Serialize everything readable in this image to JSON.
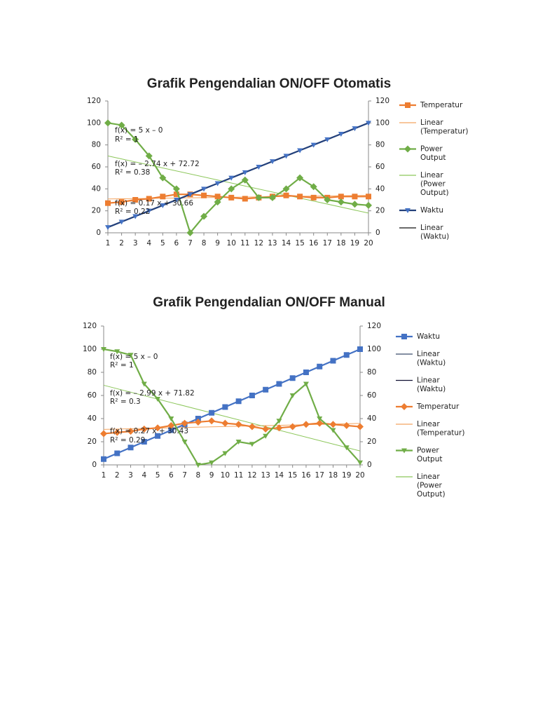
{
  "chart_data": [
    {
      "type": "line",
      "title": "Grafik Pengendalian ON/OFF Otomatis",
      "x": [
        1,
        2,
        3,
        4,
        5,
        6,
        7,
        8,
        9,
        10,
        11,
        12,
        13,
        14,
        15,
        16,
        17,
        18,
        19,
        20
      ],
      "xlim": [
        1,
        20
      ],
      "xticks": [
        1,
        2,
        3,
        4,
        5,
        6,
        7,
        8,
        9,
        10,
        11,
        12,
        13,
        14,
        15,
        16,
        17,
        18,
        19,
        20
      ],
      "ylim": [
        0,
        120
      ],
      "yticks": [
        0,
        20,
        40,
        60,
        80,
        100,
        120
      ],
      "y2lim": [
        0,
        120
      ],
      "y2ticks": [
        0,
        20,
        40,
        60,
        80,
        100,
        120
      ],
      "legend": "right",
      "series": [
        {
          "name": "Temperatur",
          "color": "#ed7d31",
          "marker": "square",
          "values": [
            27,
            28,
            30,
            31,
            33,
            35,
            35,
            34,
            33,
            32,
            31,
            32,
            33,
            34,
            33,
            32,
            32,
            33,
            33,
            33
          ]
        },
        {
          "name": "Linear (Temperatur)",
          "color": "#f4a460",
          "trendline": true,
          "x": [
            1,
            20
          ],
          "values": [
            30.83,
            34.06
          ]
        },
        {
          "name": "Power Output",
          "color": "#70ad47",
          "marker": "diamond",
          "values": [
            100,
            98,
            85,
            70,
            50,
            40,
            0,
            15,
            28,
            40,
            48,
            32,
            32,
            40,
            50,
            42,
            30,
            28,
            26,
            25
          ]
        },
        {
          "name": "Linear (Power Output)",
          "color": "#8cc65a",
          "trendline": true,
          "x": [
            1,
            20
          ],
          "values": [
            69.98,
            17.92
          ]
        },
        {
          "name": "Waktu",
          "color": "#23407a",
          "marker_color": "#4472c4",
          "marker": "triangle",
          "axis": "y2",
          "values": [
            5,
            10,
            15,
            20,
            25,
            30,
            35,
            40,
            45,
            50,
            55,
            60,
            65,
            70,
            75,
            80,
            85,
            90,
            95,
            100
          ]
        },
        {
          "name": "Linear (Waktu)",
          "color": "#111111",
          "trendline": true,
          "axis": "y2",
          "x": [
            1,
            20
          ],
          "values": [
            5,
            100
          ]
        }
      ],
      "annotations": [
        "f(x) = 5 x – 0",
        "R² = 1",
        "f(x) = – 2.74 x + 72.72",
        "R² = 0.38",
        "f(x) = 0.17 x + 30.66",
        "R² = 0.22"
      ]
    },
    {
      "type": "line",
      "title": "Grafik Pengendalian ON/OFF Manual",
      "x": [
        1,
        2,
        3,
        4,
        5,
        6,
        7,
        8,
        9,
        10,
        11,
        12,
        13,
        14,
        15,
        16,
        17,
        18,
        19,
        20
      ],
      "xlim": [
        1,
        20
      ],
      "xticks": [
        1,
        2,
        3,
        4,
        5,
        6,
        7,
        8,
        9,
        10,
        11,
        12,
        13,
        14,
        15,
        16,
        17,
        18,
        19,
        20
      ],
      "ylim": [
        0,
        120
      ],
      "yticks": [
        0,
        20,
        40,
        60,
        80,
        100,
        120
      ],
      "y2lim": [
        0,
        120
      ],
      "y2ticks": [
        0,
        20,
        40,
        60,
        80,
        100,
        120
      ],
      "legend": "right",
      "series": [
        {
          "name": "Waktu",
          "color": "#4472c4",
          "marker": "square",
          "values": [
            5,
            10,
            15,
            20,
            25,
            30,
            35,
            40,
            45,
            50,
            55,
            60,
            65,
            70,
            75,
            80,
            85,
            90,
            95,
            100
          ]
        },
        {
          "name": "Linear (Waktu)",
          "color": "#3b4a6b",
          "trendline": true,
          "x": [
            1,
            20
          ],
          "values": [
            5,
            100
          ]
        },
        {
          "name": "Linear (Waktu)",
          "color": "#111133",
          "trendline": true,
          "axis": "y2",
          "x": [
            1,
            20
          ],
          "values": [
            5,
            100
          ]
        },
        {
          "name": "Temperatur",
          "color": "#ed7d31",
          "marker": "diamond",
          "values": [
            27,
            28,
            29,
            31,
            32,
            34,
            36,
            37,
            38,
            36,
            35,
            33,
            31,
            32,
            33,
            35,
            36,
            35,
            34,
            33
          ]
        },
        {
          "name": "Linear (Temperatur)",
          "color": "#f4a460",
          "trendline": true,
          "x": [
            1,
            20
          ],
          "values": [
            30.7,
            35.83
          ]
        },
        {
          "name": "Power Output",
          "color": "#70ad47",
          "marker": "triangle",
          "axis": "y2",
          "values": [
            100,
            98,
            95,
            70,
            57,
            40,
            20,
            0,
            2,
            10,
            20,
            18,
            25,
            38,
            60,
            70,
            40,
            30,
            15,
            2
          ]
        },
        {
          "name": "Linear (Power Output)",
          "color": "#8cc65a",
          "trendline": true,
          "axis": "y2",
          "x": [
            1,
            20
          ],
          "values": [
            68.83,
            12.02
          ]
        }
      ],
      "annotations": [
        "f(x) = 5 x – 0",
        "R² = 1",
        "f(x) = – 2.99 x + 71.82",
        "R² = 0.3",
        "f(x) = 0.27 x + 30.43",
        "R² = 0.29"
      ]
    }
  ]
}
